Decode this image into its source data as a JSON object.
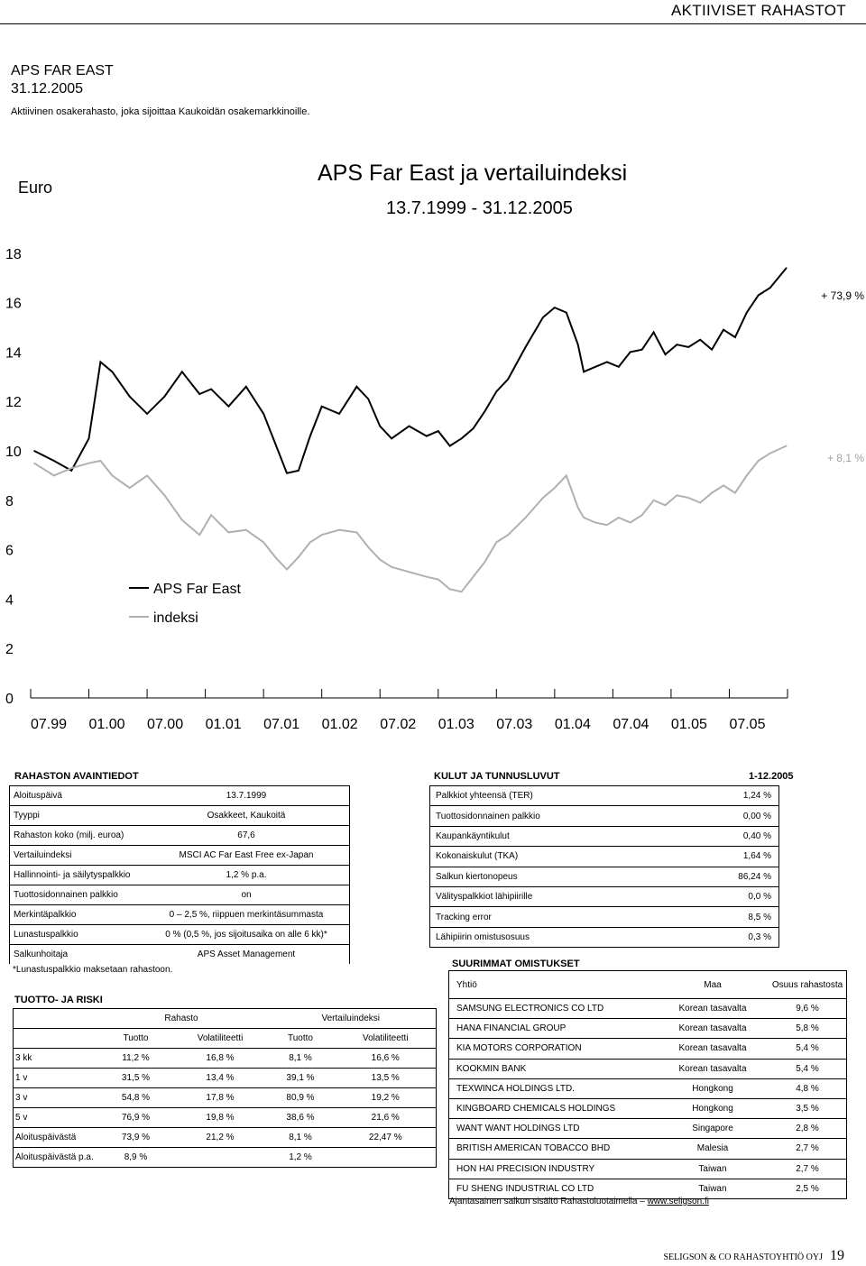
{
  "header": {
    "title": "AKTIIVISET RAHASTOT"
  },
  "fund": {
    "name": "APS FAR EAST",
    "date": "31.12.2005",
    "description": "Aktiivinen osakerahasto, joka sijoittaa Kaukoidän osakemarkkinoille."
  },
  "chart": {
    "title": "APS Far East ja vertailuindeksi",
    "subtitle": "13.7.1999 - 31.12.2005",
    "unit": "Euro",
    "annotation_fund": "+ 73,9 %",
    "annotation_index": "+ 8,1 %",
    "legend_fund": "APS Far East",
    "legend_index": "indeksi"
  },
  "chart_data": {
    "type": "line",
    "title": "APS Far East ja vertailuindeksi",
    "subtitle": "13.7.1999 - 31.12.2005",
    "ylabel": "Euro",
    "ylim": [
      0,
      20
    ],
    "yticks": [
      0,
      2,
      4,
      6,
      8,
      10,
      12,
      14,
      16,
      18,
      20
    ],
    "xticks": [
      "07.99",
      "01.00",
      "07.00",
      "01.01",
      "07.01",
      "01.02",
      "07.02",
      "01.03",
      "07.03",
      "01.04",
      "07.04",
      "01.05",
      "07.05"
    ],
    "grid": false,
    "legend": "lower-left",
    "series": [
      {
        "name": "APS Far East",
        "color": "#000000",
        "x": [
          1999.53,
          1999.7,
          1999.85,
          2000.0,
          2000.1,
          2000.2,
          2000.35,
          2000.5,
          2000.65,
          2000.8,
          2000.95,
          2001.05,
          2001.2,
          2001.35,
          2001.5,
          2001.6,
          2001.7,
          2001.8,
          2001.9,
          2002.0,
          2002.15,
          2002.3,
          2002.4,
          2002.5,
          2002.6,
          2002.75,
          2002.9,
          2003.0,
          2003.1,
          2003.2,
          2003.3,
          2003.4,
          2003.5,
          2003.6,
          2003.75,
          2003.9,
          2004.0,
          2004.1,
          2004.2,
          2004.25,
          2004.35,
          2004.45,
          2004.55,
          2004.65,
          2004.75,
          2004.85,
          2004.95,
          2005.05,
          2005.15,
          2005.25,
          2005.35,
          2005.45,
          2005.55,
          2005.65,
          2005.75,
          2005.85,
          2005.99
        ],
        "values": [
          10.0,
          9.6,
          9.2,
          10.5,
          13.6,
          13.2,
          12.2,
          11.5,
          12.2,
          13.2,
          12.3,
          12.5,
          11.8,
          12.6,
          11.5,
          10.3,
          9.1,
          9.2,
          10.6,
          11.8,
          11.5,
          12.6,
          12.1,
          11.0,
          10.5,
          11.0,
          10.6,
          10.8,
          10.2,
          10.5,
          10.9,
          11.6,
          12.4,
          12.9,
          14.2,
          15.4,
          15.8,
          15.6,
          14.3,
          13.2,
          13.4,
          13.6,
          13.4,
          14.0,
          14.1,
          14.8,
          13.9,
          14.3,
          14.2,
          14.5,
          14.1,
          14.9,
          14.6,
          15.6,
          16.3,
          16.6,
          17.4
        ]
      },
      {
        "name": "indeksi",
        "color": "#b0b0b0",
        "x": [
          1999.53,
          1999.7,
          1999.85,
          2000.0,
          2000.1,
          2000.2,
          2000.35,
          2000.5,
          2000.65,
          2000.8,
          2000.95,
          2001.05,
          2001.2,
          2001.35,
          2001.5,
          2001.6,
          2001.7,
          2001.8,
          2001.9,
          2002.0,
          2002.15,
          2002.3,
          2002.4,
          2002.5,
          2002.6,
          2002.75,
          2002.9,
          2003.0,
          2003.1,
          2003.2,
          2003.3,
          2003.4,
          2003.5,
          2003.6,
          2003.75,
          2003.9,
          2004.0,
          2004.1,
          2004.2,
          2004.25,
          2004.35,
          2004.45,
          2004.55,
          2004.65,
          2004.75,
          2004.85,
          2004.95,
          2005.05,
          2005.15,
          2005.25,
          2005.35,
          2005.45,
          2005.55,
          2005.65,
          2005.75,
          2005.85,
          2005.99
        ],
        "values": [
          9.5,
          9.0,
          9.3,
          9.5,
          9.6,
          9.0,
          8.5,
          9.0,
          8.2,
          7.2,
          6.6,
          7.4,
          6.7,
          6.8,
          6.3,
          5.7,
          5.2,
          5.7,
          6.3,
          6.6,
          6.8,
          6.7,
          6.1,
          5.6,
          5.3,
          5.1,
          4.9,
          4.8,
          4.4,
          4.3,
          4.9,
          5.5,
          6.3,
          6.6,
          7.3,
          8.1,
          8.5,
          9.0,
          7.7,
          7.3,
          7.1,
          7.0,
          7.3,
          7.1,
          7.4,
          8.0,
          7.8,
          8.2,
          8.1,
          7.9,
          8.3,
          8.6,
          8.3,
          9.0,
          9.6,
          9.9,
          10.2
        ]
      }
    ]
  },
  "basic_info": {
    "title": "RAHASTON AVAINTIEDOT",
    "rows": [
      {
        "label": "Aloituspäivä",
        "value": "13.7.1999"
      },
      {
        "label": "Tyyppi",
        "value": "Osakkeet, Kaukoitä"
      },
      {
        "label": "Rahaston koko (milj. euroa)",
        "value": "67,6"
      },
      {
        "label": "Vertailuindeksi",
        "value": "MSCI AC Far East Free ex-Japan"
      },
      {
        "label": "Hallinnointi- ja säilytyspalkkio",
        "value": "1,2 % p.a."
      },
      {
        "label": "Tuottosidonnainen palkkio",
        "value": "on"
      },
      {
        "label": "Merkintäpalkkio",
        "value": "0 – 2,5 %, riippuen merkintäsummasta"
      },
      {
        "label": "Lunastuspalkkio",
        "value": "0 % (0,5 %, jos sijoitusaika on alle 6 kk)*"
      },
      {
        "label": "Salkunhoitaja",
        "value": "APS Asset Management"
      }
    ],
    "footnote": "*Lunastuspalkkio maksetaan rahastoon."
  },
  "costs": {
    "title": "KULUT JA TUNNUSLUVUT",
    "period": "1-12.2005",
    "rows": [
      {
        "label": "Palkkiot yhteensä (TER)",
        "value": "1,24 %"
      },
      {
        "label": "Tuottosidonnainen palkkio",
        "value": "0,00 %"
      },
      {
        "label": "Kaupankäyntikulut",
        "value": "0,40 %"
      },
      {
        "label": "Kokonaiskulut (TKA)",
        "value": "1,64 %"
      },
      {
        "label": "Salkun kiertonopeus",
        "value": "86,24 %"
      },
      {
        "label": "Välityspalkkiot lähipiirille",
        "value": "0,0 %"
      },
      {
        "label": "Tracking error",
        "value": "8,5 %"
      },
      {
        "label": "Lähipiirin omistusosuus",
        "value": "0,3 %"
      }
    ]
  },
  "performance": {
    "title": "TUOTTO- JA RISKI",
    "group_fund": "Rahasto",
    "group_index": "Vertailuindeksi",
    "col_return": "Tuotto",
    "col_volatility": "Volatiliteetti",
    "rows": [
      {
        "period": "3 kk",
        "f_ret": "11,2 %",
        "f_vol": "16,8 %",
        "i_ret": "8,1 %",
        "i_vol": "16,6 %"
      },
      {
        "period": "1 v",
        "f_ret": "31,5 %",
        "f_vol": "13,4 %",
        "i_ret": "39,1 %",
        "i_vol": "13,5 %"
      },
      {
        "period": "3 v",
        "f_ret": "54,8 %",
        "f_vol": "17,8 %",
        "i_ret": "80,9 %",
        "i_vol": "19,2 %"
      },
      {
        "period": "5 v",
        "f_ret": "76,9 %",
        "f_vol": "19,8 %",
        "i_ret": "38,6 %",
        "i_vol": "21,6 %"
      },
      {
        "period": "Aloituspäivästä",
        "f_ret": "73,9 %",
        "f_vol": "21,2 %",
        "i_ret": "8,1 %",
        "i_vol": "22,47 %"
      },
      {
        "period": "Aloituspäivästä p.a.",
        "f_ret": "8,9 %",
        "f_vol": "",
        "i_ret": "1,2 %",
        "i_vol": ""
      }
    ]
  },
  "holdings": {
    "title": "SUURIMMAT OMISTUKSET",
    "col_company": "Yhtiö",
    "col_country": "Maa",
    "col_share": "Osuus rahastosta",
    "rows": [
      {
        "company": "SAMSUNG ELECTRONICS CO LTD",
        "country": "Korean tasavalta",
        "share": "9,6 %"
      },
      {
        "company": "HANA FINANCIAL GROUP",
        "country": "Korean tasavalta",
        "share": "5,8 %"
      },
      {
        "company": "KIA MOTORS CORPORATION",
        "country": "Korean tasavalta",
        "share": "5,4 %"
      },
      {
        "company": "KOOKMIN BANK",
        "country": "Korean tasavalta",
        "share": "5,4 %"
      },
      {
        "company": "TEXWINCA HOLDINGS LTD.",
        "country": "Hongkong",
        "share": "4,8 %"
      },
      {
        "company": "KINGBOARD CHEMICALS HOLDINGS",
        "country": "Hongkong",
        "share": "3,5 %"
      },
      {
        "company": "WANT WANT HOLDINGS LTD",
        "country": "Singapore",
        "share": "2,8 %"
      },
      {
        "company": "BRITISH AMERICAN TOBACCO BHD",
        "country": "Malesia",
        "share": "2,7 %"
      },
      {
        "company": "HON HAI PRECISION INDUSTRY",
        "country": "Taiwan",
        "share": "2,7 %"
      },
      {
        "company": "FU SHENG INDUSTRIAL CO LTD",
        "country": "Taiwan",
        "share": "2,5 %"
      }
    ],
    "note_text": "Ajantasainen salkun sisältö Rahastoluotaimella –",
    "note_link": "www.seligson.fi"
  },
  "footer": {
    "company": "SELIGSON & CO RAHASTOYHTIÖ OYJ",
    "page": "19"
  }
}
